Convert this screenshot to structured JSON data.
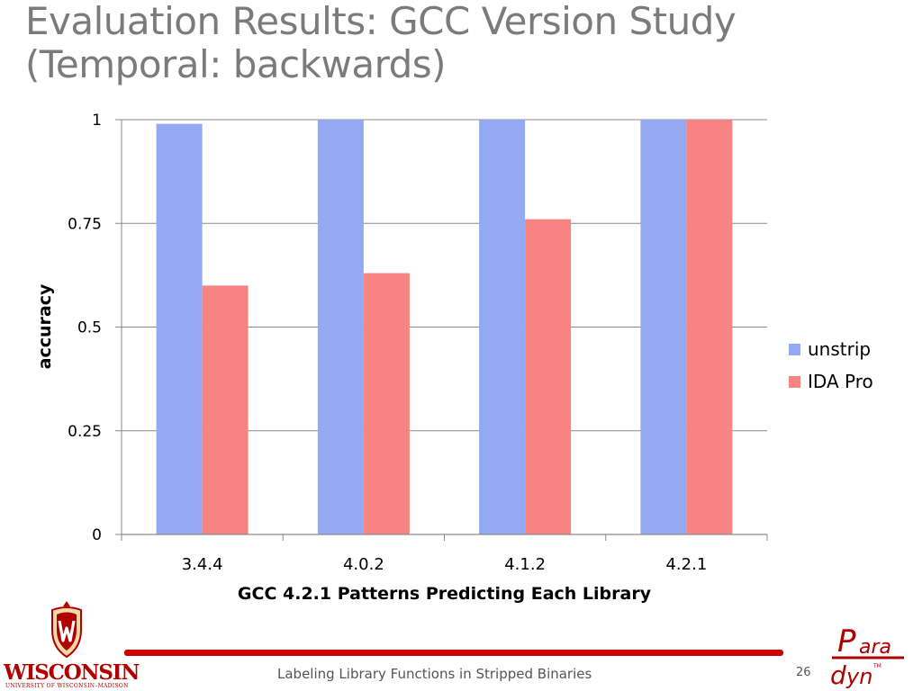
{
  "slide": {
    "title_line1": "Evaluation Results: GCC Version Study",
    "title_line2": "(Temporal: backwards)",
    "footer_text": "Labeling Library Functions in Stripped Binaries",
    "page_number": "26"
  },
  "logos": {
    "left_name": "WISCONSIN",
    "left_subtitle": "UNIVERSITY OF WISCONSIN–MADISON",
    "right_name": "Paradyn"
  },
  "colors": {
    "unstrip": "#93aaf2",
    "ida_pro": "#f78383",
    "title": "#7b7b7b",
    "footer_line": "#cc0000",
    "logo_red": "#b00000"
  },
  "chart_data": {
    "type": "bar",
    "categories": [
      "3.4.4",
      "4.0.2",
      "4.1.2",
      "4.2.1"
    ],
    "series": [
      {
        "name": "unstrip",
        "values": [
          0.99,
          1.0,
          1.0,
          1.0
        ]
      },
      {
        "name": "IDA Pro",
        "values": [
          0.6,
          0.63,
          0.76,
          1.0
        ]
      }
    ],
    "xlabel": "GCC 4.2.1 Patterns Predicting Each Library",
    "ylabel": "accuracy",
    "ylim": [
      0,
      1
    ],
    "yticks": [
      0,
      0.25,
      0.5,
      0.75,
      1
    ],
    "ytick_labels": [
      "0",
      "0.25",
      "0.5",
      "0.75",
      "1"
    ],
    "grid": true,
    "legend_position": "right"
  }
}
